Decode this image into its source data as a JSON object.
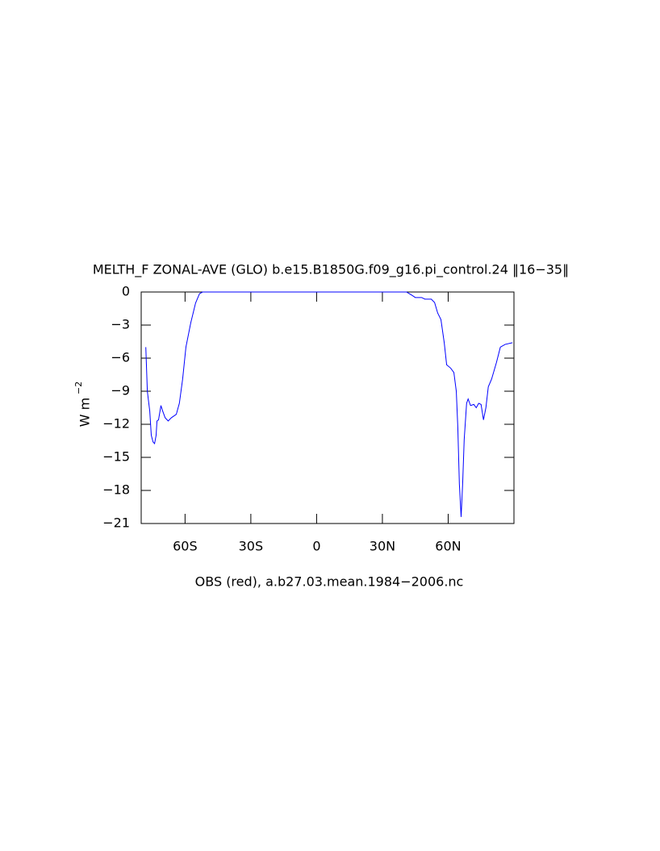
{
  "chart_data": {
    "type": "line",
    "title": "MELTH_F ZONAL-AVE (GLO) b.e15.B1850G.f09_g16.pi_control.24 ‖16−35‖",
    "x_label": "OBS (red), a.b27.03.mean.1984−2006.nc",
    "y_label": "W m",
    "y_label_exponent": "−2",
    "xlim": [
      -80,
      90
    ],
    "ylim": [
      -21,
      0
    ],
    "xticks": [
      {
        "value": -60,
        "label": "60S"
      },
      {
        "value": -30,
        "label": "30S"
      },
      0,
      {
        "value": 30,
        "label": "30N"
      },
      {
        "value": 60,
        "label": "60N"
      }
    ],
    "yticks": [
      0,
      {
        "value": -3,
        "label": "−3"
      },
      {
        "value": -6,
        "label": "−6"
      },
      {
        "value": -9,
        "label": "−9"
      },
      {
        "value": -12,
        "label": "−12"
      },
      {
        "value": -15,
        "label": "−15"
      },
      {
        "value": -18,
        "label": "−18"
      },
      {
        "value": -21,
        "label": "−21"
      }
    ],
    "x": [
      -77.9,
      -77.2,
      -76.1,
      -75.4,
      -74.6,
      -73.9,
      -73.2,
      -72.8,
      -72.1,
      -71.0,
      -70.2,
      -69.1,
      -67.7,
      -66.2,
      -64.0,
      -62.6,
      -61.1,
      -59.6,
      -57.4,
      -55.2,
      -53.4,
      -52.0,
      41.0,
      43.5,
      45.0,
      47.9,
      49.4,
      52.3,
      53.8,
      55.2,
      56.7,
      58.2,
      59.3,
      61.1,
      62.6,
      63.7,
      64.4,
      65.1,
      65.9,
      66.6,
      67.3,
      68.4,
      69.1,
      70.2,
      71.7,
      72.8,
      73.9,
      75.0,
      76.1,
      77.2,
      78.3,
      79.8,
      82.0,
      83.8,
      86.0,
      89.3
    ],
    "series": [
      {
        "color": "#0000ff",
        "values": [
          -5.0,
          -9.0,
          -10.8,
          -13.0,
          -13.6,
          -13.75,
          -13.0,
          -11.7,
          -11.6,
          -10.3,
          -10.8,
          -11.4,
          -11.7,
          -11.4,
          -11.1,
          -10.1,
          -7.9,
          -5.0,
          -2.8,
          -1.0,
          -0.15,
          0,
          0,
          -0.3,
          -0.5,
          -0.5,
          -0.65,
          -0.65,
          -0.95,
          -1.9,
          -2.5,
          -4.6,
          -6.6,
          -6.9,
          -7.3,
          -9.0,
          -12.3,
          -17.4,
          -20.4,
          -17.4,
          -13.4,
          -10.1,
          -9.7,
          -10.3,
          -10.2,
          -10.5,
          -10.1,
          -10.2,
          -11.6,
          -10.5,
          -8.6,
          -7.9,
          -6.4,
          -5.0,
          -4.75,
          -4.6
        ]
      }
    ]
  }
}
